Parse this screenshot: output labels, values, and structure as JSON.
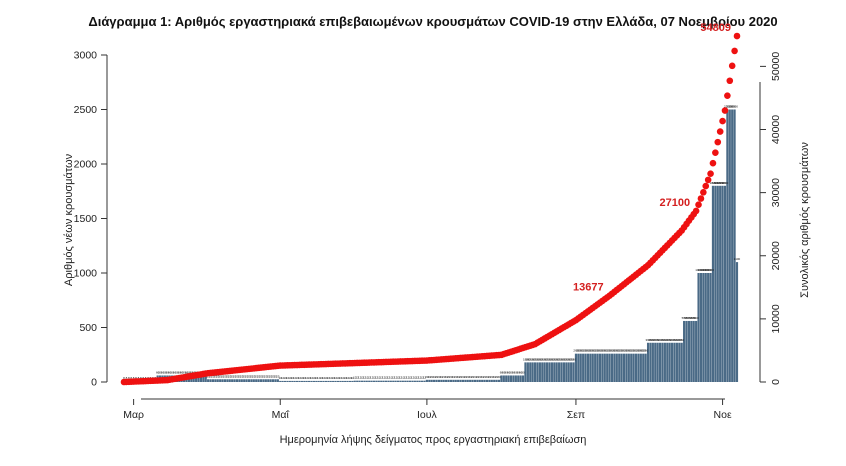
{
  "chart_data": {
    "type": "bar",
    "title": "Διάγραμμα 1: Αριθμός εργαστηριακά επιβεβαιωμένων κρουσμάτων COVID-19 στην Ελλάδα, 07 Νοεμβρίου 2020",
    "xlabel": "Ημερομηνία λήψης δείγματος προς εργαστηριακή επιβεβαίωση",
    "ylabel_left": "Αριθμός νέων κρουσμάτων",
    "ylabel_right": "Συνολικός αριθμός κρουσμάτων",
    "x_tick_labels": [
      "Μαρ",
      "Μαΐ",
      "Ιουλ",
      "Σεπ",
      "Νοε"
    ],
    "x_range": [
      "2020-02-26",
      "2020-11-07"
    ],
    "y_left_ticks": [
      0,
      500,
      1000,
      1500,
      2000,
      2500,
      3000
    ],
    "y_left_lim": [
      0,
      3000
    ],
    "y_right_ticks": [
      0,
      10000,
      20000,
      30000,
      40000,
      50000
    ],
    "y_right_lim": [
      0,
      56000
    ],
    "grid": false,
    "legend": "none",
    "series": [
      {
        "kind": "bar",
        "axis": "left",
        "color": "#4a6a86",
        "period_daily_cases": [
          {
            "from": "2020-02-26",
            "to": "2020-03-10",
            "daily": 8
          },
          {
            "from": "2020-03-11",
            "to": "2020-03-31",
            "daily": 60
          },
          {
            "from": "2020-04-01",
            "to": "2020-04-30",
            "daily": 25
          },
          {
            "from": "2020-05-01",
            "to": "2020-05-31",
            "daily": 10
          },
          {
            "from": "2020-06-01",
            "to": "2020-06-30",
            "daily": 12
          },
          {
            "from": "2020-07-01",
            "to": "2020-07-31",
            "daily": 20
          },
          {
            "from": "2020-08-01",
            "to": "2020-08-10",
            "daily": 60
          },
          {
            "from": "2020-08-11",
            "to": "2020-08-31",
            "daily": 180
          },
          {
            "from": "2020-09-01",
            "to": "2020-09-30",
            "daily": 260
          },
          {
            "from": "2020-10-01",
            "to": "2020-10-15",
            "daily": 360
          },
          {
            "from": "2020-10-16",
            "to": "2020-10-21",
            "daily": 560
          },
          {
            "from": "2020-10-22",
            "to": "2020-10-27",
            "daily": 1000
          },
          {
            "from": "2020-10-28",
            "to": "2020-11-02",
            "daily": 1800
          },
          {
            "from": "2020-11-03",
            "to": "2020-11-06",
            "daily": 2500
          },
          {
            "from": "2020-11-07",
            "to": "2020-11-07",
            "daily": 1100
          }
        ]
      },
      {
        "kind": "line-points",
        "axis": "right",
        "color": "#ee1111",
        "points": [
          {
            "date": "2020-02-26",
            "cumulative": 0
          },
          {
            "date": "2020-03-15",
            "cumulative": 300
          },
          {
            "date": "2020-04-01",
            "cumulative": 1400
          },
          {
            "date": "2020-05-01",
            "cumulative": 2600
          },
          {
            "date": "2020-06-01",
            "cumulative": 3000
          },
          {
            "date": "2020-07-01",
            "cumulative": 3400
          },
          {
            "date": "2020-08-01",
            "cumulative": 4300
          },
          {
            "date": "2020-08-15",
            "cumulative": 6000
          },
          {
            "date": "2020-09-01",
            "cumulative": 9800
          },
          {
            "date": "2020-09-15",
            "cumulative": 13677
          },
          {
            "date": "2020-10-01",
            "cumulative": 18500
          },
          {
            "date": "2020-10-15",
            "cumulative": 24000
          },
          {
            "date": "2020-10-21",
            "cumulative": 27100
          },
          {
            "date": "2020-10-27",
            "cumulative": 33000
          },
          {
            "date": "2020-11-02",
            "cumulative": 43000
          },
          {
            "date": "2020-11-07",
            "cumulative": 54809
          }
        ]
      }
    ],
    "annotations": [
      {
        "text": "13677",
        "date": "2020-09-15",
        "value": 13677,
        "axis": "right"
      },
      {
        "text": "27100",
        "date": "2020-10-21",
        "value": 27100,
        "axis": "right"
      },
      {
        "text": "54809",
        "date": "2020-11-07",
        "value": 54809,
        "axis": "right"
      }
    ]
  }
}
